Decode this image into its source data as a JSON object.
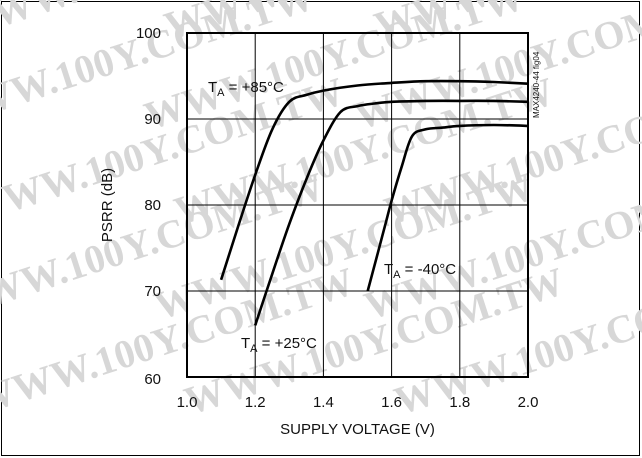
{
  "chart_data": {
    "type": "line",
    "xlabel": "SUPPLY VOLTAGE (V)",
    "ylabel": "PSRR (dB)",
    "xlim": [
      1.0,
      2.0
    ],
    "ylim": [
      60,
      100
    ],
    "x_ticks": [
      "1.0",
      "1.2",
      "1.4",
      "1.6",
      "1.8",
      "2.0"
    ],
    "y_ticks": [
      "60",
      "70",
      "80",
      "90",
      "100"
    ],
    "grid": true,
    "figure_id": "MAX4240-44 fig04",
    "watermark": "WWW.100Y.COM.TW",
    "series": [
      {
        "name": "TA = +85°C",
        "label_main": "T",
        "label_sub": "A",
        "label_rest": " = +85°C",
        "x": [
          1.1,
          1.15,
          1.2,
          1.25,
          1.3,
          1.35,
          1.4,
          1.5,
          1.6,
          1.7,
          1.8,
          1.9,
          2.0
        ],
        "y": [
          71.3,
          77.5,
          83.5,
          88.8,
          92.0,
          92.8,
          93.3,
          93.9,
          94.2,
          94.4,
          94.4,
          94.3,
          94.1
        ]
      },
      {
        "name": "TA = +25°C",
        "label_main": "T",
        "label_sub": "A",
        "label_rest": " = +25°C",
        "x": [
          1.2,
          1.25,
          1.3,
          1.35,
          1.4,
          1.45,
          1.5,
          1.55,
          1.6,
          1.7,
          1.8,
          1.9,
          2.0
        ],
        "y": [
          66.0,
          72.0,
          77.8,
          83.0,
          87.5,
          90.8,
          91.5,
          91.8,
          92.0,
          92.1,
          92.1,
          92.1,
          92.0
        ]
      },
      {
        "name": "TA = -40°C",
        "label_main": "T",
        "label_sub": "A",
        "label_rest": " = -40°C",
        "x": [
          1.53,
          1.56,
          1.58,
          1.6,
          1.63,
          1.66,
          1.7,
          1.75,
          1.8,
          1.9,
          2.0
        ],
        "y": [
          70.0,
          74.5,
          77.5,
          80.5,
          84.5,
          88.0,
          88.8,
          89.0,
          89.2,
          89.3,
          89.2
        ]
      }
    ]
  }
}
